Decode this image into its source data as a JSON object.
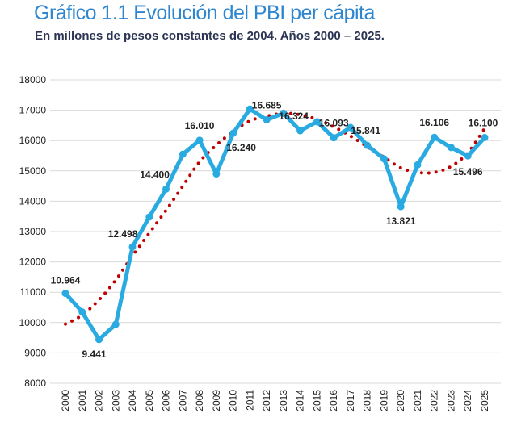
{
  "header": {
    "title": "Gráfico 1.1 Evolución del PBI per cápita",
    "subtitle": "En  millones de pesos constantes de 2004. Años 2000 – 2025."
  },
  "chart_data": {
    "type": "line",
    "title": "Gráfico 1.1 Evolución del PBI per cápita",
    "subtitle": "En  millones de pesos constantes de 2004. Años 2000 – 2025.",
    "xlabel": "",
    "ylabel": "",
    "ylim": [
      8000,
      18000
    ],
    "yticks": [
      8000,
      9000,
      10000,
      11000,
      12000,
      13000,
      14000,
      15000,
      16000,
      17000,
      18000
    ],
    "grid": true,
    "legend": "none",
    "categories": [
      "2000",
      "2001",
      "2002",
      "2003",
      "2004",
      "2005",
      "2006",
      "2007",
      "2008",
      "2009",
      "2010",
      "2011",
      "2012",
      "2013",
      "2014",
      "2015",
      "2016",
      "2017",
      "2018",
      "2019",
      "2020",
      "2021",
      "2022",
      "2023",
      "2024",
      "2025"
    ],
    "series": [
      {
        "style": "line",
        "color": "#29abe2",
        "values": [
          10964,
          10350,
          9441,
          9940,
          12498,
          13480,
          14400,
          15550,
          16010,
          14900,
          16240,
          17040,
          16685,
          16900,
          16324,
          16620,
          16093,
          16430,
          15841,
          15400,
          13821,
          15200,
          16106,
          15770,
          15496,
          16100
        ]
      },
      {
        "style": "dotted-trend",
        "color": "#c00000",
        "values": [
          9950,
          10250,
          10750,
          11400,
          12200,
          12950,
          13700,
          14500,
          15300,
          15850,
          16300,
          16650,
          16800,
          16900,
          16850,
          16700,
          16450,
          16150,
          15800,
          15450,
          15100,
          14950,
          14950,
          15150,
          15600,
          16400
        ]
      }
    ],
    "data_labels": [
      {
        "x": "2000",
        "text": "10.964"
      },
      {
        "x": "2002",
        "text": "9.441"
      },
      {
        "x": "2004",
        "text": "12.498"
      },
      {
        "x": "2006",
        "text": "14.400"
      },
      {
        "x": "2008",
        "text": "16.010"
      },
      {
        "x": "2010",
        "text": "16.240"
      },
      {
        "x": "2012",
        "text": "16.685"
      },
      {
        "x": "2014",
        "text": "16.324"
      },
      {
        "x": "2016",
        "text": "16.093"
      },
      {
        "x": "2018",
        "text": "15.841"
      },
      {
        "x": "2020",
        "text": "13.821"
      },
      {
        "x": "2022",
        "text": "16.106"
      },
      {
        "x": "2024",
        "text": "15.496"
      },
      {
        "x": "2025",
        "text": "16.100"
      }
    ]
  }
}
